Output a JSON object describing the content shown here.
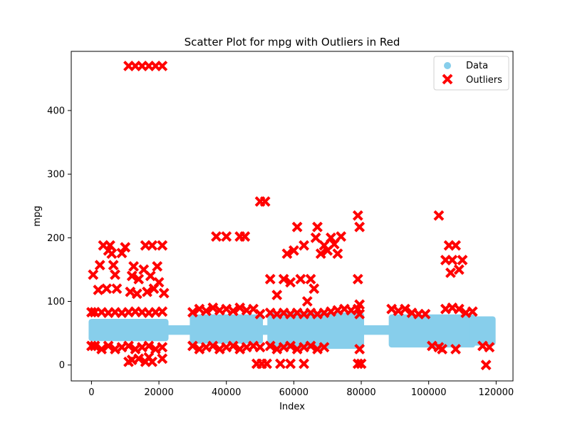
{
  "chart_data": {
    "type": "scatter",
    "title": "Scatter Plot for mpg with Outliers in Red",
    "xlabel": "Index",
    "ylabel": "mpg",
    "xlim": [
      -6000,
      125000
    ],
    "ylim": [
      -25,
      493
    ],
    "x_ticks": [
      0,
      20000,
      40000,
      60000,
      80000,
      100000,
      120000
    ],
    "y_ticks": [
      0,
      100,
      200,
      300,
      400
    ],
    "grid": false,
    "legend_position": "top-right",
    "colors": {
      "data": "#87ceeb",
      "outliers": "#ff0000"
    },
    "legend": {
      "data_label": "Data",
      "outliers_label": "Outliers"
    },
    "data_bands": [
      {
        "x": [
          0,
          22000
        ],
        "y": [
          42,
          68
        ]
      },
      {
        "x": [
          22000,
          30000
        ],
        "y": [
          52,
          58
        ]
      },
      {
        "x": [
          30000,
          50000
        ],
        "y": [
          38,
          75
        ]
      },
      {
        "x": [
          50000,
          53000
        ],
        "y": [
          52,
          58
        ]
      },
      {
        "x": [
          53000,
          80000
        ],
        "y": [
          30,
          78
        ]
      },
      {
        "x": [
          80000,
          89000
        ],
        "y": [
          52,
          58
        ]
      },
      {
        "x": [
          89000,
          113000
        ],
        "y": [
          32,
          75
        ]
      },
      {
        "x": [
          113000,
          119000
        ],
        "y": [
          35,
          72
        ]
      }
    ],
    "series": [
      {
        "name": "Outliers",
        "points": [
          [
            0,
            83
          ],
          [
            0,
            30
          ],
          [
            500,
            142
          ],
          [
            2000,
            118
          ],
          [
            2500,
            157
          ],
          [
            3500,
            188
          ],
          [
            4500,
            120
          ],
          [
            5000,
            180
          ],
          [
            5500,
            188
          ],
          [
            6000,
            175
          ],
          [
            6500,
            157
          ],
          [
            7000,
            142
          ],
          [
            7500,
            120
          ],
          [
            9000,
            176
          ],
          [
            10000,
            185
          ],
          [
            11000,
            470
          ],
          [
            11500,
            115
          ],
          [
            12000,
            140
          ],
          [
            12500,
            155
          ],
          [
            13000,
            470
          ],
          [
            13500,
            112
          ],
          [
            14000,
            135
          ],
          [
            15000,
            470
          ],
          [
            15500,
            150
          ],
          [
            16000,
            188
          ],
          [
            16500,
            115
          ],
          [
            17000,
            470
          ],
          [
            17500,
            140
          ],
          [
            18000,
            188
          ],
          [
            18500,
            120
          ],
          [
            19000,
            470
          ],
          [
            19500,
            155
          ],
          [
            20000,
            130
          ],
          [
            21000,
            470
          ],
          [
            21000,
            188
          ],
          [
            21500,
            113
          ],
          [
            11000,
            5
          ],
          [
            12000,
            8
          ],
          [
            14000,
            10
          ],
          [
            16000,
            5
          ],
          [
            17000,
            12
          ],
          [
            18000,
            5
          ],
          [
            21000,
            10
          ],
          [
            1000,
            83
          ],
          [
            3000,
            83
          ],
          [
            5000,
            82
          ],
          [
            7000,
            83
          ],
          [
            9000,
            82
          ],
          [
            11000,
            83
          ],
          [
            13000,
            84
          ],
          [
            15000,
            83
          ],
          [
            17000,
            82
          ],
          [
            19000,
            83
          ],
          [
            21000,
            84
          ],
          [
            1000,
            30
          ],
          [
            3000,
            25
          ],
          [
            5000,
            30
          ],
          [
            7000,
            25
          ],
          [
            9000,
            28
          ],
          [
            11000,
            30
          ],
          [
            13000,
            25
          ],
          [
            15000,
            28
          ],
          [
            17000,
            30
          ],
          [
            19000,
            25
          ],
          [
            21000,
            28
          ],
          [
            30000,
            83
          ],
          [
            32000,
            88
          ],
          [
            34000,
            85
          ],
          [
            36000,
            90
          ],
          [
            38000,
            86
          ],
          [
            40000,
            88
          ],
          [
            42000,
            85
          ],
          [
            44000,
            90
          ],
          [
            46000,
            86
          ],
          [
            48000,
            88
          ],
          [
            50000,
            80
          ],
          [
            30000,
            30
          ],
          [
            32000,
            25
          ],
          [
            34000,
            28
          ],
          [
            36000,
            30
          ],
          [
            38000,
            25
          ],
          [
            40000,
            28
          ],
          [
            42000,
            30
          ],
          [
            44000,
            25
          ],
          [
            46000,
            28
          ],
          [
            48000,
            30
          ],
          [
            50000,
            28
          ],
          [
            37000,
            202
          ],
          [
            40000,
            202
          ],
          [
            44000,
            202
          ],
          [
            45500,
            202
          ],
          [
            50000,
            257
          ],
          [
            51500,
            257
          ],
          [
            49000,
            2
          ],
          [
            50500,
            2
          ],
          [
            52000,
            2
          ],
          [
            56000,
            2
          ],
          [
            59000,
            2
          ],
          [
            63000,
            2
          ],
          [
            53000,
            82
          ],
          [
            55000,
            80
          ],
          [
            57000,
            82
          ],
          [
            59000,
            80
          ],
          [
            61000,
            82
          ],
          [
            63000,
            80
          ],
          [
            65000,
            82
          ],
          [
            67000,
            80
          ],
          [
            69000,
            82
          ],
          [
            71000,
            84
          ],
          [
            73000,
            86
          ],
          [
            75000,
            88
          ],
          [
            77000,
            86
          ],
          [
            79000,
            88
          ],
          [
            53000,
            30
          ],
          [
            55000,
            25
          ],
          [
            57000,
            28
          ],
          [
            59000,
            30
          ],
          [
            61000,
            25
          ],
          [
            63000,
            28
          ],
          [
            65000,
            30
          ],
          [
            67000,
            25
          ],
          [
            69000,
            28
          ],
          [
            53000,
            135
          ],
          [
            55000,
            110
          ],
          [
            57000,
            135
          ],
          [
            58000,
            175
          ],
          [
            59000,
            130
          ],
          [
            60000,
            180
          ],
          [
            61000,
            217
          ],
          [
            62000,
            135
          ],
          [
            63000,
            188
          ],
          [
            64000,
            100
          ],
          [
            65000,
            135
          ],
          [
            66000,
            120
          ],
          [
            66500,
            200
          ],
          [
            67000,
            217
          ],
          [
            68000,
            175
          ],
          [
            69000,
            188
          ],
          [
            70000,
            180
          ],
          [
            71000,
            200
          ],
          [
            72000,
            190
          ],
          [
            73000,
            175
          ],
          [
            74000,
            202
          ],
          [
            79000,
            235
          ],
          [
            79500,
            217
          ],
          [
            79000,
            135
          ],
          [
            79500,
            95
          ],
          [
            79500,
            25
          ],
          [
            79000,
            2
          ],
          [
            80000,
            2
          ],
          [
            79500,
            80
          ],
          [
            89000,
            88
          ],
          [
            91000,
            85
          ],
          [
            93000,
            88
          ],
          [
            95000,
            82
          ],
          [
            97000,
            80
          ],
          [
            99000,
            80
          ],
          [
            101000,
            30
          ],
          [
            103000,
            28
          ],
          [
            105000,
            88
          ],
          [
            107000,
            90
          ],
          [
            109000,
            88
          ],
          [
            111000,
            82
          ],
          [
            113000,
            84
          ],
          [
            103000,
            235
          ],
          [
            105000,
            165
          ],
          [
            106000,
            188
          ],
          [
            106500,
            145
          ],
          [
            107000,
            165
          ],
          [
            108000,
            188
          ],
          [
            109000,
            150
          ],
          [
            110000,
            165
          ],
          [
            108000,
            25
          ],
          [
            104000,
            25
          ],
          [
            116000,
            30
          ],
          [
            117000,
            0
          ],
          [
            118000,
            28
          ]
        ]
      }
    ]
  }
}
